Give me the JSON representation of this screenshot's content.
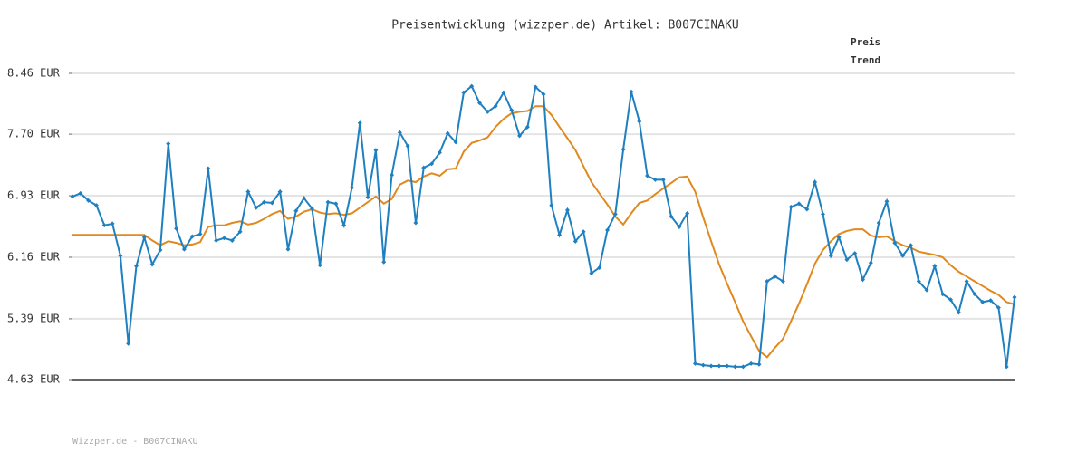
{
  "chart_data": {
    "type": "line",
    "title": "Preisentwicklung (wizzper.de) Artikel: B007CINAKU",
    "source": "Wizzper.de - B007CINAKU",
    "ylim": [
      4.63,
      8.46
    ],
    "yticks": [
      {
        "value": 4.63,
        "label": "4.63 EUR"
      },
      {
        "value": 5.39,
        "label": "5.39 EUR"
      },
      {
        "value": 6.16,
        "label": "6.16 EUR"
      },
      {
        "value": 6.93,
        "label": "6.93 EUR"
      },
      {
        "value": 7.7,
        "label": "7.70 EUR"
      },
      {
        "value": 8.46,
        "label": "8.46 EUR"
      }
    ],
    "grid": true,
    "legend": "top-right",
    "series": [
      {
        "name": "Preis",
        "color": "#1f80c0",
        "markers": true,
        "values": [
          6.92,
          6.96,
          6.87,
          6.81,
          6.56,
          6.58,
          6.18,
          5.08,
          6.05,
          6.41,
          6.07,
          6.25,
          7.58,
          6.52,
          6.26,
          6.42,
          6.45,
          7.27,
          6.37,
          6.4,
          6.37,
          6.48,
          6.98,
          6.78,
          6.85,
          6.84,
          6.98,
          6.26,
          6.74,
          6.9,
          6.77,
          6.06,
          6.85,
          6.83,
          6.56,
          7.03,
          7.84,
          6.91,
          7.5,
          6.1,
          7.19,
          7.72,
          7.55,
          6.59,
          7.28,
          7.33,
          7.47,
          7.71,
          7.6,
          8.22,
          8.3,
          8.09,
          7.98,
          8.05,
          8.22,
          8.0,
          7.68,
          7.79,
          8.29,
          8.2,
          6.81,
          6.44,
          6.75,
          6.36,
          6.48,
          5.96,
          6.03,
          6.5,
          6.7,
          7.51,
          8.23,
          7.86,
          7.18,
          7.13,
          7.13,
          6.67,
          6.54,
          6.71,
          4.83,
          4.81,
          4.8,
          4.8,
          4.8,
          4.79,
          4.79,
          4.83,
          4.82,
          5.86,
          5.92,
          5.86,
          6.79,
          6.83,
          6.76,
          7.1,
          6.7,
          6.18,
          6.41,
          6.13,
          6.21,
          5.88,
          6.09,
          6.59,
          6.86,
          6.34,
          6.18,
          6.31,
          5.86,
          5.75,
          6.05,
          5.7,
          5.63,
          5.47,
          5.86,
          5.7,
          5.6,
          5.62,
          5.53,
          4.79,
          5.66
        ]
      },
      {
        "name": "Trend",
        "color": "#e0891e",
        "markers": false,
        "values": [
          6.44,
          6.44,
          6.44,
          6.44,
          6.44,
          6.44,
          6.44,
          6.44,
          6.44,
          6.44,
          6.37,
          6.31,
          6.36,
          6.34,
          6.31,
          6.32,
          6.35,
          6.54,
          6.56,
          6.56,
          6.59,
          6.61,
          6.57,
          6.59,
          6.64,
          6.7,
          6.74,
          6.64,
          6.67,
          6.73,
          6.76,
          6.72,
          6.7,
          6.71,
          6.69,
          6.71,
          6.78,
          6.85,
          6.92,
          6.83,
          6.89,
          7.07,
          7.12,
          7.1,
          7.17,
          7.21,
          7.18,
          7.26,
          7.27,
          7.48,
          7.59,
          7.62,
          7.66,
          7.79,
          7.89,
          7.96,
          7.98,
          7.99,
          8.05,
          8.05,
          7.94,
          7.79,
          7.65,
          7.5,
          7.3,
          7.1,
          6.96,
          6.82,
          6.67,
          6.57,
          6.71,
          6.84,
          6.87,
          6.95,
          7.02,
          7.09,
          7.16,
          7.17,
          6.98,
          6.66,
          6.36,
          6.07,
          5.83,
          5.6,
          5.36,
          5.17,
          4.99,
          4.91,
          5.03,
          5.14,
          5.36,
          5.58,
          5.82,
          6.08,
          6.25,
          6.36,
          6.45,
          6.49,
          6.51,
          6.51,
          6.43,
          6.41,
          6.42,
          6.36,
          6.31,
          6.28,
          6.23,
          6.21,
          6.19,
          6.16,
          6.06,
          5.98,
          5.92,
          5.86,
          5.8,
          5.74,
          5.69,
          5.6,
          5.57
        ]
      }
    ]
  }
}
